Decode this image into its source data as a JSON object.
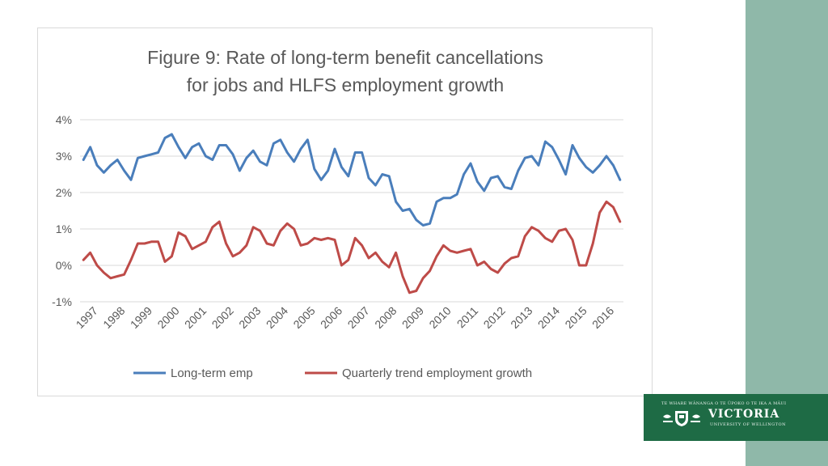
{
  "chart_data": {
    "type": "line",
    "title_lines": [
      "Figure 9: Rate of long-term benefit cancellations",
      "for jobs and HLFS employment growth"
    ],
    "y_ticks": [
      "4%",
      "3%",
      "2%",
      "1%",
      "0%",
      "-1%"
    ],
    "ylim": [
      -1,
      4
    ],
    "x_labels": [
      "1997",
      "1998",
      "1999",
      "2000",
      "2001",
      "2002",
      "2003",
      "2004",
      "2005",
      "2006",
      "2007",
      "2008",
      "2009",
      "2010",
      "2011",
      "2012",
      "2013",
      "2014",
      "2015",
      "2016"
    ],
    "series": [
      {
        "name": "Long-term emp",
        "color": "#4a7ebb",
        "values": [
          2.9,
          3.25,
          2.75,
          2.55,
          2.75,
          2.9,
          2.6,
          2.35,
          2.95,
          3.0,
          3.05,
          3.1,
          3.5,
          3.6,
          3.25,
          2.95,
          3.25,
          3.35,
          3.0,
          2.9,
          3.3,
          3.3,
          3.05,
          2.6,
          2.95,
          3.15,
          2.85,
          2.75,
          3.35,
          3.45,
          3.1,
          2.85,
          3.2,
          3.45,
          2.65,
          2.35,
          2.6,
          3.2,
          2.7,
          2.45,
          3.1,
          3.1,
          2.4,
          2.2,
          2.5,
          2.45,
          1.75,
          1.5,
          1.55,
          1.25,
          1.1,
          1.15,
          1.75,
          1.85,
          1.85,
          1.95,
          2.5,
          2.8,
          2.3,
          2.05,
          2.4,
          2.45,
          2.15,
          2.1,
          2.6,
          2.95,
          3.0,
          2.75,
          3.4,
          3.25,
          2.9,
          2.5,
          3.3,
          2.95,
          2.7,
          2.55,
          2.75,
          3.0,
          2.75,
          2.35
        ]
      },
      {
        "name": "Quarterly trend employment growth",
        "color": "#be4b48",
        "values": [
          0.15,
          0.35,
          0.0,
          -0.2,
          -0.35,
          -0.3,
          -0.25,
          0.15,
          0.6,
          0.6,
          0.65,
          0.65,
          0.1,
          0.25,
          0.9,
          0.8,
          0.45,
          0.55,
          0.65,
          1.05,
          1.2,
          0.6,
          0.25,
          0.35,
          0.55,
          1.05,
          0.95,
          0.6,
          0.55,
          0.95,
          1.15,
          1.0,
          0.55,
          0.6,
          0.75,
          0.7,
          0.75,
          0.7,
          0.0,
          0.15,
          0.75,
          0.55,
          0.2,
          0.35,
          0.1,
          -0.05,
          0.35,
          -0.3,
          -0.75,
          -0.7,
          -0.35,
          -0.15,
          0.25,
          0.55,
          0.4,
          0.35,
          0.4,
          0.45,
          0.0,
          0.1,
          -0.1,
          -0.2,
          0.05,
          0.2,
          0.25,
          0.8,
          1.05,
          0.95,
          0.75,
          0.65,
          0.95,
          1.0,
          0.7,
          0.0,
          0.0,
          0.6,
          1.45,
          1.75,
          1.6,
          1.2
        ]
      }
    ],
    "grid": true,
    "legend": "bottom"
  },
  "logo": {
    "tagline": "TE WHARE WĀNANGA O TE ŪPOKO O TE IKA A MĀUI",
    "name": "VICTORIA",
    "sub": "UNIVERSITY OF WELLINGTON"
  }
}
